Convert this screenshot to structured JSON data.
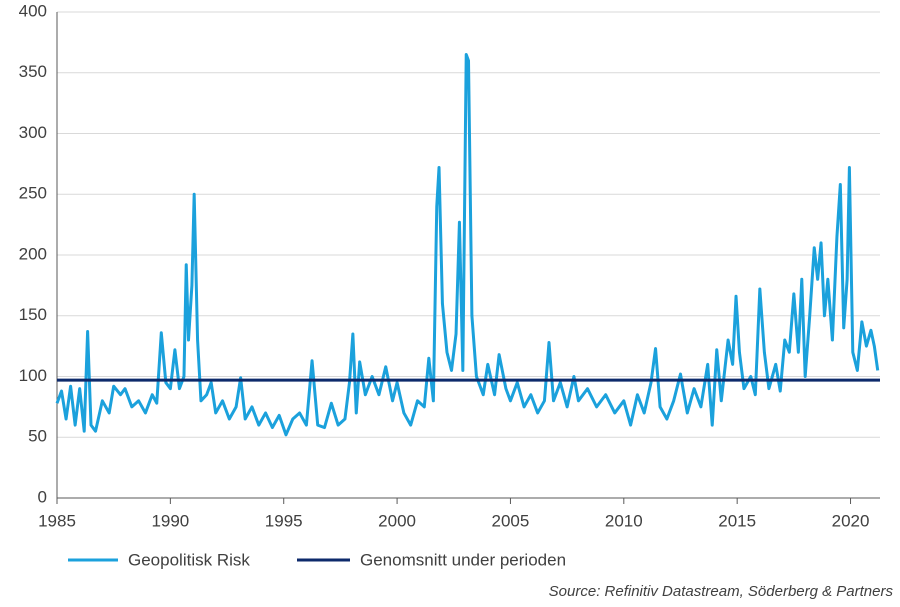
{
  "chart_data": {
    "type": "line",
    "x": [
      1985.0,
      1985.2,
      1985.4,
      1985.6,
      1985.8,
      1986.0,
      1986.2,
      1986.35,
      1986.5,
      1986.7,
      1987.0,
      1987.3,
      1987.5,
      1987.8,
      1988.0,
      1988.3,
      1988.6,
      1988.9,
      1989.2,
      1989.4,
      1989.6,
      1989.8,
      1990.0,
      1990.2,
      1990.4,
      1990.6,
      1990.7,
      1990.8,
      1990.95,
      1991.05,
      1991.2,
      1991.35,
      1991.6,
      1991.8,
      1992.0,
      1992.3,
      1992.6,
      1992.9,
      1993.1,
      1993.3,
      1993.6,
      1993.9,
      1994.2,
      1994.5,
      1994.8,
      1995.1,
      1995.4,
      1995.7,
      1996.0,
      1996.25,
      1996.5,
      1996.8,
      1997.1,
      1997.4,
      1997.7,
      1997.9,
      1998.05,
      1998.2,
      1998.35,
      1998.6,
      1998.9,
      1999.2,
      1999.5,
      1999.8,
      2000.0,
      2000.3,
      2000.6,
      2000.9,
      2001.2,
      2001.4,
      2001.6,
      2001.75,
      2001.85,
      2002.0,
      2002.2,
      2002.4,
      2002.6,
      2002.75,
      2002.9,
      2003.05,
      2003.15,
      2003.3,
      2003.5,
      2003.8,
      2004.0,
      2004.3,
      2004.5,
      2004.8,
      2005.0,
      2005.3,
      2005.6,
      2005.9,
      2006.2,
      2006.5,
      2006.7,
      2006.9,
      2007.2,
      2007.5,
      2007.8,
      2008.0,
      2008.4,
      2008.8,
      2009.2,
      2009.6,
      2010.0,
      2010.3,
      2010.6,
      2010.9,
      2011.2,
      2011.4,
      2011.6,
      2011.9,
      2012.2,
      2012.5,
      2012.8,
      2013.1,
      2013.4,
      2013.7,
      2013.9,
      2014.1,
      2014.3,
      2014.6,
      2014.8,
      2014.95,
      2015.1,
      2015.3,
      2015.6,
      2015.8,
      2016.0,
      2016.2,
      2016.4,
      2016.7,
      2016.9,
      2017.1,
      2017.3,
      2017.5,
      2017.7,
      2017.85,
      2018.0,
      2018.2,
      2018.4,
      2018.55,
      2018.7,
      2018.85,
      2019.0,
      2019.2,
      2019.4,
      2019.55,
      2019.7,
      2019.85,
      2019.95,
      2020.1,
      2020.3,
      2020.5,
      2020.7,
      2020.9,
      2021.05,
      2021.2
    ],
    "series": [
      {
        "name": "Geopolitisk Risk",
        "color": "#1ba1dc",
        "values": [
          78,
          88,
          65,
          92,
          60,
          90,
          55,
          137,
          60,
          55,
          80,
          70,
          92,
          85,
          90,
          75,
          80,
          70,
          85,
          78,
          136,
          95,
          90,
          122,
          90,
          100,
          192,
          130,
          175,
          250,
          130,
          80,
          85,
          95,
          70,
          80,
          65,
          75,
          99,
          65,
          75,
          60,
          70,
          58,
          68,
          52,
          65,
          70,
          60,
          113,
          60,
          58,
          78,
          60,
          65,
          95,
          135,
          70,
          112,
          85,
          100,
          85,
          108,
          80,
          95,
          70,
          60,
          80,
          75,
          115,
          80,
          240,
          272,
          160,
          120,
          105,
          135,
          227,
          105,
          365,
          360,
          150,
          100,
          85,
          110,
          85,
          118,
          90,
          80,
          95,
          75,
          85,
          70,
          80,
          128,
          80,
          95,
          75,
          100,
          80,
          90,
          75,
          85,
          70,
          80,
          60,
          85,
          70,
          95,
          123,
          75,
          65,
          80,
          102,
          70,
          90,
          75,
          110,
          60,
          122,
          80,
          130,
          110,
          166,
          120,
          90,
          100,
          85,
          172,
          120,
          90,
          110,
          88,
          130,
          120,
          168,
          120,
          180,
          100,
          150,
          206,
          180,
          210,
          150,
          180,
          130,
          215,
          258,
          140,
          180,
          272,
          120,
          105,
          145,
          125,
          138,
          125,
          105
        ]
      }
    ],
    "average": {
      "name": "Genomsnitt under perioden",
      "color": "#0d2a6b",
      "value": 97
    },
    "xlim": [
      1985,
      2021.3
    ],
    "xticks": [
      1985,
      1990,
      1995,
      2000,
      2005,
      2010,
      2015,
      2020
    ],
    "ylim": [
      0,
      400
    ],
    "yticks": [
      0,
      50,
      100,
      150,
      200,
      250,
      300,
      350,
      400
    ],
    "grid": true,
    "source": "Source: Refinitiv Datastream, Söderberg & Partners"
  }
}
